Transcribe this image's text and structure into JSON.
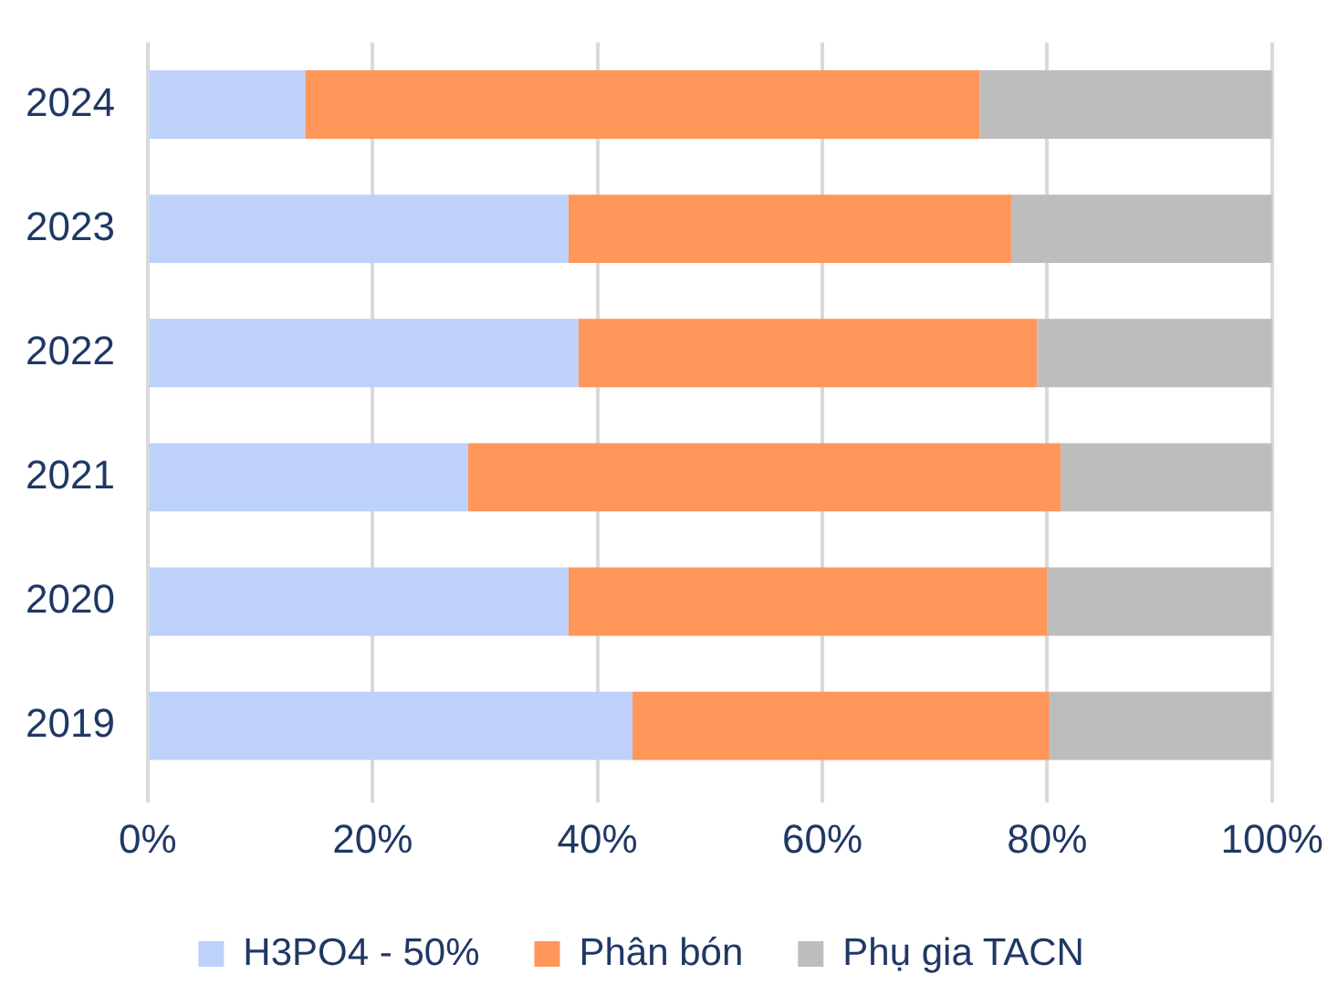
{
  "chart_data": {
    "type": "bar",
    "orientation": "horizontal",
    "stacked": true,
    "categories": [
      "2024",
      "2023",
      "2022",
      "2021",
      "2020",
      "2019"
    ],
    "series": [
      {
        "name": "H3PO4 - 50%",
        "color": "#bdd1fb",
        "values": [
          14,
          37.4,
          38.3,
          28.5,
          37.4,
          43.1
        ]
      },
      {
        "name": "Phân bón",
        "color": "#ff965a",
        "values": [
          60,
          39.4,
          40.8,
          52.7,
          42.6,
          37.1
        ]
      },
      {
        "name": "Phụ gia TACN",
        "color": "#bdbdbd",
        "values": [
          26,
          23.2,
          20.9,
          18.8,
          20,
          19.8
        ]
      }
    ],
    "xlim": [
      0,
      100
    ],
    "xticks": [
      {
        "value": 0,
        "label": "0%"
      },
      {
        "value": 20,
        "label": "20%"
      },
      {
        "value": 40,
        "label": "40%"
      },
      {
        "value": 60,
        "label": "60%"
      },
      {
        "value": 80,
        "label": "80%"
      },
      {
        "value": 100,
        "label": "100%"
      }
    ],
    "grid": "x",
    "legend": "bottom"
  }
}
